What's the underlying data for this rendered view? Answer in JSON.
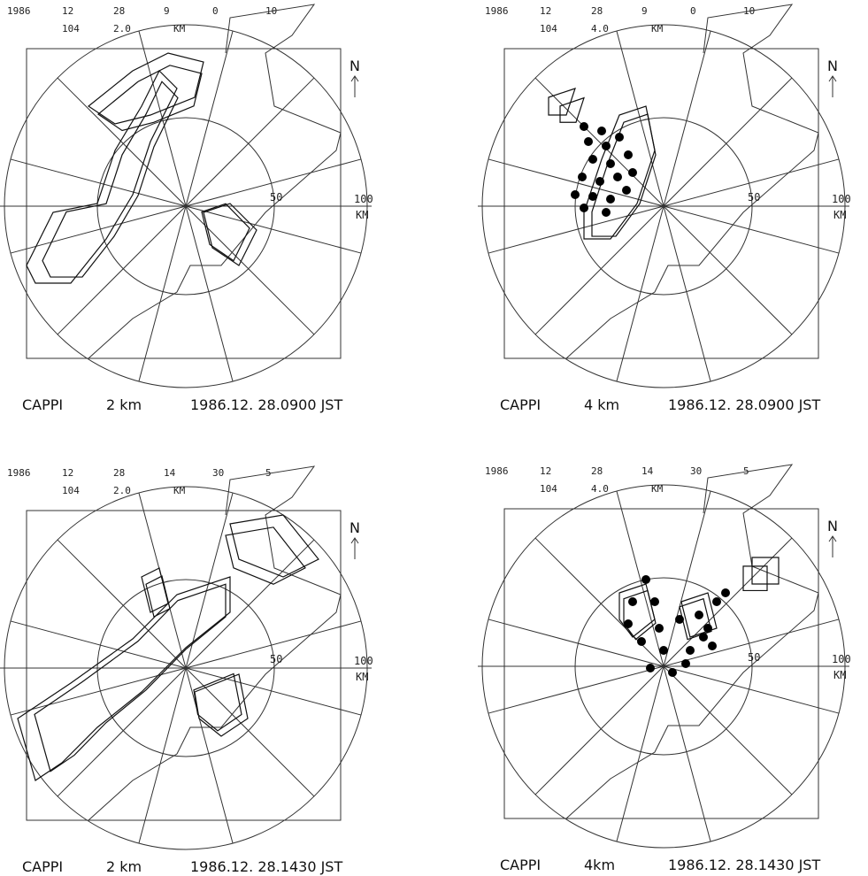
{
  "panels": [
    {
      "header": {
        "row1": [
          "1986",
          "12",
          "28",
          "9",
          "0",
          "10"
        ],
        "row2": [
          "104",
          "2.0",
          "KM"
        ]
      },
      "range_labels": [
        "50",
        "100",
        "KM"
      ],
      "north": "N",
      "caption": [
        "CAPPI",
        "2 km",
        "1986.12. 28.0900 JST"
      ]
    },
    {
      "header": {
        "row1": [
          "1986",
          "12",
          "28",
          "9",
          "0",
          "10"
        ],
        "row2": [
          "104",
          "4.0",
          "KM"
        ]
      },
      "range_labels": [
        "50",
        "100",
        "KM"
      ],
      "north": "N",
      "caption": [
        "CAPPI",
        "4 km",
        "1986.12. 28.0900 JST"
      ]
    },
    {
      "header": {
        "row1": [
          "1986",
          "12",
          "28",
          "14",
          "30",
          "5"
        ],
        "row2": [
          "104",
          "2.0",
          "KM"
        ]
      },
      "range_labels": [
        "50",
        "100",
        "KM"
      ],
      "north": "N",
      "caption": [
        "CAPPI",
        "2 km",
        "1986.12. 28.1430 JST"
      ]
    },
    {
      "header": {
        "row1": [
          "1986",
          "12",
          "28",
          "14",
          "30",
          "5"
        ],
        "row2": [
          "104",
          "4.0",
          "KM"
        ]
      },
      "range_labels": [
        "50",
        "100",
        "KM"
      ],
      "north": "N",
      "caption": [
        "CAPPI",
        "4km",
        "1986.12. 28.1430 JST"
      ]
    }
  ]
}
